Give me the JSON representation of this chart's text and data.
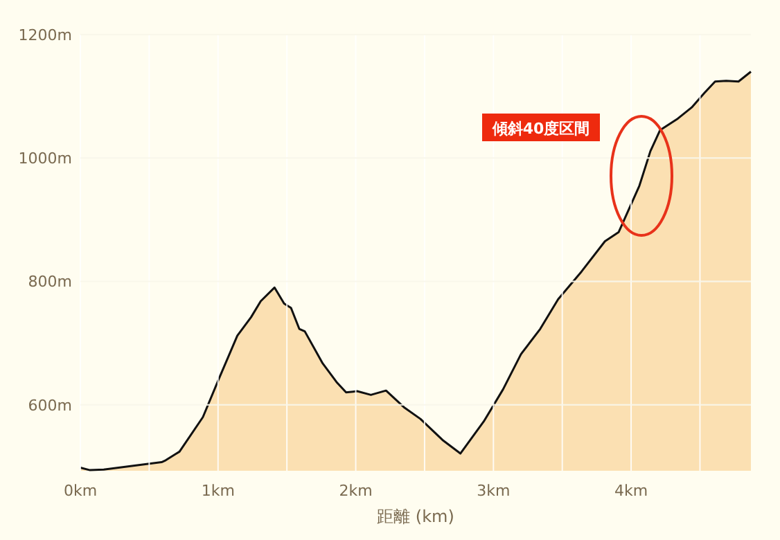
{
  "chart_data": {
    "type": "area",
    "xlabel": "距離 (km)",
    "x": [
      0,
      0.07,
      0.17,
      0.59,
      0.62,
      0.72,
      0.89,
      1.01,
      1.14,
      1.24,
      1.31,
      1.41,
      1.48,
      1.53,
      1.59,
      1.63,
      1.76,
      1.86,
      1.93,
      2.01,
      2.11,
      2.22,
      2.35,
      2.47,
      2.63,
      2.76,
      2.93,
      3.07,
      3.2,
      3.34,
      3.47,
      3.64,
      3.81,
      3.91,
      3.97,
      4.06,
      4.14,
      4.21,
      4.34,
      4.44,
      4.53,
      4.61,
      4.69,
      4.78,
      4.87
    ],
    "series": [
      {
        "color": "#fbe0b2",
        "values": [
          498,
          494,
          495,
          507,
          510,
          524,
          580,
          644,
          712,
          742,
          768,
          790,
          764,
          757,
          723,
          719,
          667,
          637,
          620,
          622,
          616,
          623,
          596,
          577,
          543,
          521,
          573,
          625,
          682,
          723,
          771,
          816,
          865,
          880,
          910,
          955,
          1011,
          1045,
          1064,
          1082,
          1105,
          1124,
          1125,
          1124,
          1140
        ]
      }
    ],
    "xlim": [
      0,
      4.87
    ],
    "ylim": [
      493,
      1200
    ],
    "xticks": [
      {
        "value": 0,
        "label": "0km"
      },
      {
        "value": 0.5,
        "label": null
      },
      {
        "value": 1,
        "label": "1km"
      },
      {
        "value": 1.5,
        "label": null
      },
      {
        "value": 2,
        "label": "2km"
      },
      {
        "value": 2.5,
        "label": null
      },
      {
        "value": 3,
        "label": "3km"
      },
      {
        "value": 3.5,
        "label": null
      },
      {
        "value": 4,
        "label": "4km"
      },
      {
        "value": 4.5,
        "label": null
      }
    ],
    "yticks": [
      {
        "value": 600,
        "label": "600m"
      },
      {
        "value": 800,
        "label": "800m"
      },
      {
        "value": 1000,
        "label": "1000m"
      },
      {
        "value": 1200,
        "label": "1200m"
      }
    ],
    "grid": true,
    "marker": "none",
    "line_style": "solid",
    "annotations": [
      "傾斜40度区間"
    ]
  }
}
